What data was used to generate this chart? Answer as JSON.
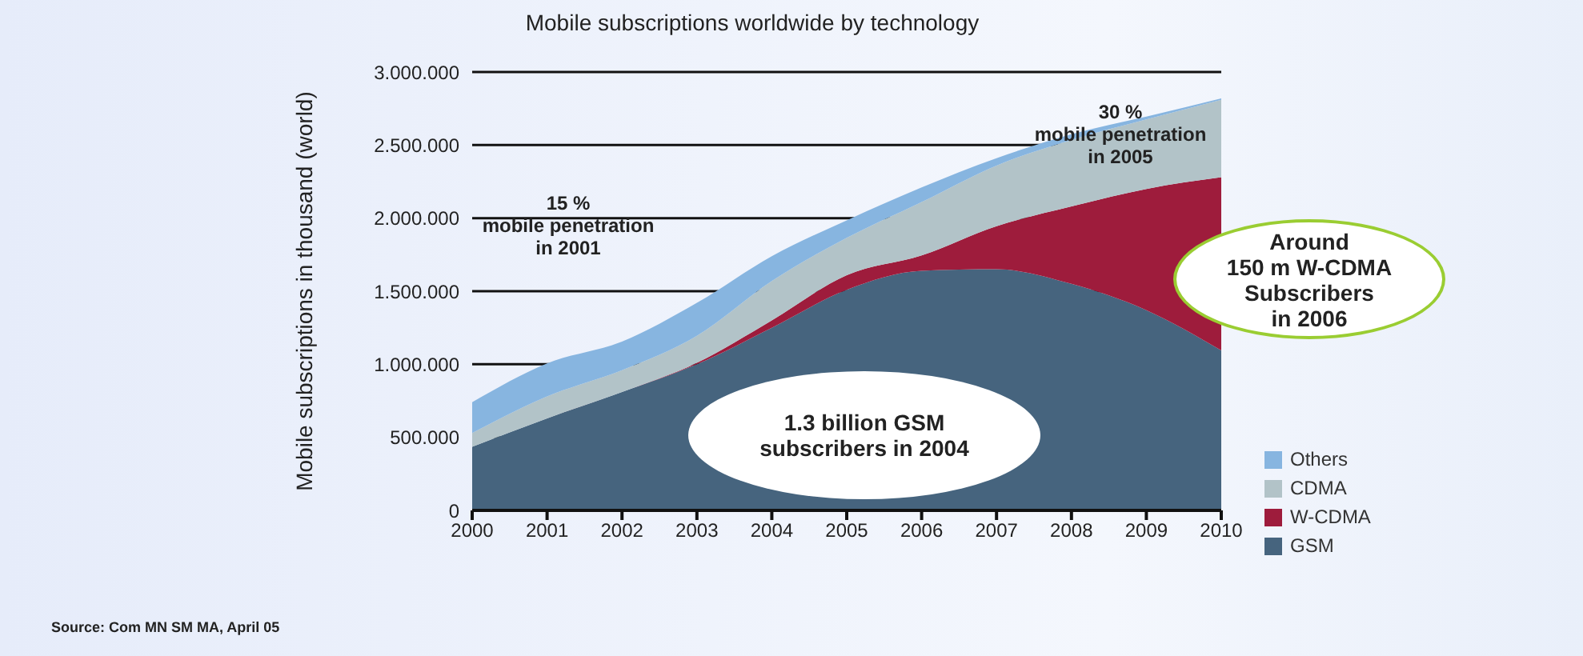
{
  "chart_data": {
    "type": "area",
    "title": "Mobile subscriptions worldwide by technology",
    "ylabel": "Mobile subscriptions in thousand (world)",
    "x": [
      2000,
      2001,
      2002,
      2003,
      2004,
      2005,
      2006,
      2007,
      2008,
      2009,
      2010
    ],
    "xlim": [
      2000,
      2010
    ],
    "xticks": [
      2000,
      2001,
      2002,
      2003,
      2004,
      2005,
      2006,
      2007,
      2008,
      2009,
      2010
    ],
    "ylim": [
      0,
      3000000
    ],
    "yticks": [
      {
        "value": 0,
        "label": "0"
      },
      {
        "value": 500000,
        "label": "500.000"
      },
      {
        "value": 1000000,
        "label": "1.000.000"
      },
      {
        "value": 1500000,
        "label": "1.500.000"
      },
      {
        "value": 2000000,
        "label": "2.000.000"
      },
      {
        "value": 2500000,
        "label": "2.500.000"
      },
      {
        "value": 3000000,
        "label": "3.000.000"
      }
    ],
    "stacked": true,
    "grid": "y",
    "legend": "bottom right",
    "series": [
      {
        "name": "GSM",
        "color": "#46647e",
        "values": [
          435000,
          630000,
          810000,
          1000000,
          1250000,
          1510000,
          1640000,
          1650000,
          1550000,
          1370000,
          1095000
        ]
      },
      {
        "name": "W-CDMA",
        "color": "#9e1c3c",
        "values": [
          0,
          0,
          0,
          10000,
          50000,
          100000,
          105000,
          295000,
          530000,
          830000,
          1185000
        ]
      },
      {
        "name": "CDMA",
        "color": "#b2c3c8",
        "values": [
          95000,
          150000,
          150000,
          185000,
          270000,
          255000,
          365000,
          415000,
          455000,
          475000,
          530000
        ]
      },
      {
        "name": "Others",
        "color": "#87b5e0",
        "values": [
          210000,
          226000,
          195000,
          225000,
          170000,
          120000,
          100000,
          50000,
          40000,
          20000,
          10000
        ]
      }
    ],
    "annotations": [
      "15 %\nmobile penetration\nin 2001",
      "30 %\nmobile penetration\nin 2005",
      "1.3 billion GSM\nsubscribers in 2004",
      "Around\n150 m W-CDMA\nSubscribers\nin 2006",
      "Source: Com MN SM MA, April 05"
    ]
  }
}
